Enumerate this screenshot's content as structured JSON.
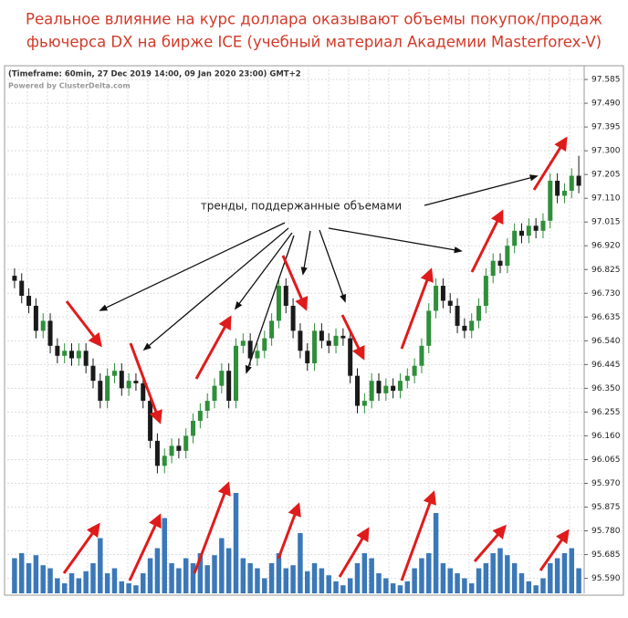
{
  "chart_data": {
    "type": "candlestick",
    "title": "Реальное влияние на курс доллара оказывают объемы покупок/продаж",
    "subtitle": "фьючерса DX на бирже ICE (учебный материал Академии Masterforex-V)",
    "info": "(Timeframe: 60min, 27 Dec 2019 14:00, 09 Jan 2020 23:00) GMT+2",
    "powered": "Powered by ClusterDelta.com",
    "annotation": "тренды, поддержанные объемами",
    "open": [
      96.8,
      96.78,
      96.72,
      96.68,
      96.58,
      96.62,
      96.52,
      96.48,
      96.5,
      96.47,
      96.5,
      96.44,
      96.38,
      96.3,
      96.4,
      96.42,
      96.35,
      96.38,
      96.37,
      96.3,
      96.14,
      96.04,
      96.08,
      96.12,
      96.1,
      96.16,
      96.22,
      96.26,
      96.3,
      96.36,
      96.42,
      96.3,
      96.52,
      96.54,
      96.47,
      96.5,
      96.55,
      96.62,
      96.76,
      96.68,
      96.58,
      96.5,
      96.45,
      96.58,
      96.54,
      96.52,
      96.56,
      96.55,
      96.4,
      96.28,
      96.3,
      96.38,
      96.33,
      96.36,
      96.34,
      96.38,
      96.4,
      96.44,
      96.52,
      96.66,
      96.76,
      96.7,
      96.68,
      96.6,
      96.58,
      96.62,
      96.68,
      96.8,
      96.86,
      96.84,
      96.92,
      96.98,
      96.96,
      97.0,
      96.98,
      97.02,
      97.18,
      97.12,
      97.14,
      97.2
    ],
    "high": [
      96.83,
      96.81,
      96.75,
      96.71,
      96.65,
      96.65,
      96.55,
      96.53,
      96.53,
      96.53,
      96.53,
      96.47,
      96.41,
      96.43,
      96.45,
      96.45,
      96.41,
      96.41,
      96.4,
      96.33,
      96.17,
      96.11,
      96.15,
      96.15,
      96.19,
      96.25,
      96.29,
      96.33,
      96.39,
      96.45,
      96.45,
      96.55,
      96.57,
      96.57,
      96.53,
      96.58,
      96.65,
      96.79,
      96.79,
      96.71,
      96.61,
      96.53,
      96.61,
      96.61,
      96.57,
      96.59,
      96.59,
      96.58,
      96.43,
      96.33,
      96.41,
      96.41,
      96.39,
      96.39,
      96.41,
      96.43,
      96.47,
      96.55,
      96.69,
      96.79,
      96.79,
      96.73,
      96.71,
      96.63,
      96.65,
      96.71,
      96.83,
      96.89,
      96.89,
      96.95,
      97.01,
      97.01,
      97.03,
      97.03,
      97.05,
      97.21,
      97.21,
      97.17,
      97.23,
      97.28
    ],
    "low": [
      96.75,
      96.69,
      96.65,
      96.55,
      96.55,
      96.49,
      96.45,
      96.45,
      96.44,
      96.44,
      96.41,
      96.35,
      96.27,
      96.27,
      96.37,
      96.32,
      96.32,
      96.34,
      96.27,
      96.11,
      96.01,
      96.01,
      96.05,
      96.07,
      96.07,
      96.13,
      96.19,
      96.23,
      96.27,
      96.33,
      96.27,
      96.27,
      96.49,
      96.44,
      96.44,
      96.47,
      96.52,
      96.59,
      96.65,
      96.55,
      96.47,
      96.42,
      96.42,
      96.51,
      96.49,
      96.49,
      96.52,
      96.37,
      96.25,
      96.25,
      96.27,
      96.3,
      96.3,
      96.31,
      96.31,
      96.35,
      96.37,
      96.41,
      96.49,
      96.63,
      96.67,
      96.65,
      96.57,
      96.55,
      96.55,
      96.59,
      96.65,
      96.77,
      96.81,
      96.81,
      96.89,
      96.93,
      96.93,
      96.95,
      96.95,
      96.99,
      97.09,
      97.09,
      97.11,
      97.13
    ],
    "close": [
      96.78,
      96.72,
      96.68,
      96.58,
      96.62,
      96.52,
      96.48,
      96.5,
      96.47,
      96.5,
      96.44,
      96.38,
      96.3,
      96.4,
      96.42,
      96.35,
      96.38,
      96.37,
      96.3,
      96.14,
      96.04,
      96.08,
      96.12,
      96.1,
      96.16,
      96.22,
      96.26,
      96.3,
      96.36,
      96.42,
      96.3,
      96.52,
      96.54,
      96.47,
      96.5,
      96.55,
      96.62,
      96.76,
      96.68,
      96.58,
      96.5,
      96.45,
      96.58,
      96.54,
      96.52,
      96.56,
      96.55,
      96.4,
      96.28,
      96.3,
      96.38,
      96.33,
      96.36,
      96.34,
      96.38,
      96.4,
      96.44,
      96.52,
      96.66,
      96.76,
      96.7,
      96.68,
      96.6,
      96.58,
      96.62,
      96.68,
      96.8,
      96.86,
      96.84,
      96.92,
      96.98,
      96.96,
      97.0,
      96.98,
      97.02,
      97.18,
      97.12,
      97.14,
      97.2,
      97.16
    ],
    "volume": [
      35,
      40,
      30,
      38,
      28,
      25,
      15,
      10,
      20,
      15,
      22,
      30,
      55,
      20,
      25,
      12,
      10,
      8,
      20,
      35,
      45,
      75,
      30,
      25,
      35,
      30,
      40,
      28,
      38,
      55,
      45,
      100,
      35,
      30,
      25,
      15,
      30,
      40,
      25,
      28,
      60,
      22,
      30,
      25,
      18,
      12,
      8,
      15,
      30,
      40,
      35,
      20,
      15,
      10,
      8,
      12,
      25,
      35,
      40,
      80,
      30,
      25,
      20,
      15,
      10,
      25,
      30,
      40,
      45,
      38,
      30,
      20,
      12,
      8,
      15,
      30,
      35,
      40,
      45,
      25
    ],
    "volume_ylim": [
      0,
      100
    ],
    "up_color": "#2f8f3a",
    "down_color": "#1a1a1a",
    "volume_color": "#3b78b8",
    "ylim": [
      95.53,
      97.64
    ],
    "yticks": [
      97.585,
      {
        "value": 97.49,
        "label": "97.490"
      },
      97.395,
      {
        "value": 97.3,
        "label": "97.300"
      },
      97.205,
      {
        "value": 97.11,
        "label": "97.110"
      },
      97.015,
      {
        "value": 96.92,
        "label": "96.920"
      },
      96.825,
      {
        "value": 96.73,
        "label": "96.730"
      },
      96.635,
      {
        "value": 96.54,
        "label": "96.540"
      },
      96.445,
      {
        "value": 96.35,
        "label": "96.350"
      },
      96.255,
      {
        "value": 96.16,
        "label": "96.160"
      },
      96.065,
      {
        "value": 95.97,
        "label": "95.970"
      },
      95.875,
      {
        "value": 95.78,
        "label": "95.780"
      },
      95.685,
      {
        "value": 95.59,
        "label": "95.590"
      }
    ],
    "grid": true
  }
}
